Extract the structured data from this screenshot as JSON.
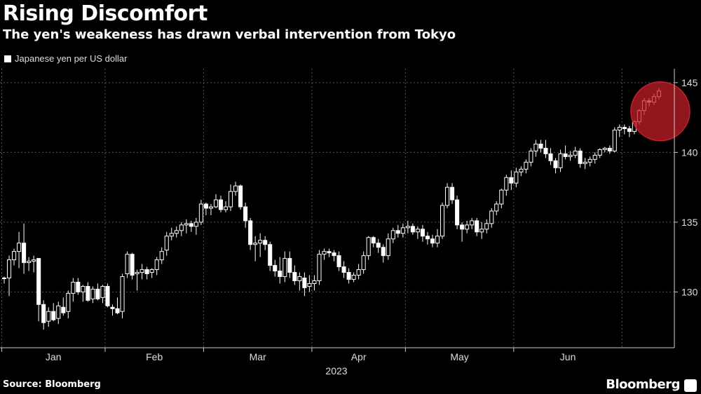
{
  "chart_data": {
    "type": "candlestick",
    "title": "Rising Discomfort",
    "subtitle": "The yen's weakeness has drawn verbal intervention from Tokyo",
    "series_name": "Japanese yen per US dollar",
    "ylim": [
      126,
      146
    ],
    "yticks": [
      130,
      135,
      140,
      145
    ],
    "x_ticks": [
      "Jan",
      "Feb",
      "Mar",
      "Apr",
      "May",
      "Jun"
    ],
    "x_year_label": "2023",
    "grid": true,
    "highlight": {
      "from_index": 128,
      "to_index": 138,
      "color": "#c8202a"
    },
    "candles": [
      [
        131.0,
        131.1,
        130.6,
        131.0
      ],
      [
        131.0,
        132.6,
        129.7,
        132.3
      ],
      [
        132.3,
        133.1,
        131.9,
        132.9
      ],
      [
        132.9,
        134.3,
        131.7,
        133.5
      ],
      [
        133.5,
        134.9,
        131.3,
        132.1
      ],
      [
        132.1,
        132.5,
        131.5,
        132.2
      ],
      [
        132.2,
        132.6,
        131.4,
        132.3
      ],
      [
        132.4,
        132.4,
        127.9,
        129.1
      ],
      [
        129.1,
        129.4,
        127.3,
        127.8
      ],
      [
        127.9,
        128.9,
        127.5,
        128.6
      ],
      [
        128.6,
        129.2,
        127.9,
        128.0
      ],
      [
        128.1,
        129.3,
        127.7,
        129.0
      ],
      [
        128.9,
        129.6,
        128.3,
        128.5
      ],
      [
        128.6,
        130.1,
        128.1,
        129.9
      ],
      [
        129.9,
        131.0,
        129.3,
        130.7
      ],
      [
        130.7,
        131.0,
        129.8,
        130.0
      ],
      [
        130.0,
        130.5,
        129.3,
        130.4
      ],
      [
        130.4,
        130.7,
        129.3,
        129.4
      ],
      [
        129.5,
        130.4,
        129.2,
        130.2
      ],
      [
        130.2,
        130.6,
        129.4,
        129.5
      ],
      [
        129.6,
        130.5,
        129.2,
        130.4
      ],
      [
        130.4,
        130.6,
        128.9,
        129.0
      ],
      [
        128.9,
        129.1,
        128.3,
        128.8
      ],
      [
        128.8,
        129.6,
        128.4,
        128.5
      ],
      [
        128.6,
        131.3,
        128.1,
        131.1
      ],
      [
        131.3,
        132.9,
        131.0,
        132.7
      ],
      [
        132.7,
        132.8,
        130.9,
        131.2
      ],
      [
        131.3,
        131.6,
        130.1,
        131.4
      ],
      [
        131.4,
        132.0,
        130.9,
        131.6
      ],
      [
        131.6,
        131.8,
        130.9,
        131.3
      ],
      [
        131.4,
        131.7,
        131.0,
        131.6
      ],
      [
        131.6,
        132.5,
        131.2,
        132.3
      ],
      [
        132.3,
        133.2,
        132.0,
        132.9
      ],
      [
        133.0,
        134.3,
        132.6,
        134.0
      ],
      [
        134.0,
        134.6,
        133.7,
        134.2
      ],
      [
        134.2,
        134.7,
        133.9,
        134.4
      ],
      [
        134.4,
        135.0,
        134.0,
        134.8
      ],
      [
        134.8,
        135.2,
        134.2,
        134.9
      ],
      [
        134.9,
        135.1,
        134.3,
        134.7
      ],
      [
        134.7,
        135.3,
        134.1,
        135.0
      ],
      [
        135.0,
        136.6,
        134.8,
        136.3
      ],
      [
        136.3,
        136.4,
        135.5,
        136.0
      ],
      [
        136.0,
        136.3,
        135.5,
        136.1
      ],
      [
        136.1,
        137.0,
        136.0,
        136.6
      ],
      [
        136.6,
        136.9,
        135.7,
        135.9
      ],
      [
        135.9,
        136.5,
        135.7,
        136.1
      ],
      [
        136.1,
        137.7,
        135.8,
        137.2
      ],
      [
        137.2,
        137.9,
        136.9,
        137.6
      ],
      [
        137.6,
        137.7,
        135.9,
        136.1
      ],
      [
        136.1,
        136.4,
        134.6,
        135.1
      ],
      [
        135.1,
        135.3,
        133.0,
        133.4
      ],
      [
        133.4,
        134.0,
        132.2,
        133.5
      ],
      [
        133.5,
        134.2,
        132.5,
        133.7
      ],
      [
        133.7,
        134.0,
        133.0,
        133.4
      ],
      [
        133.4,
        133.6,
        131.5,
        131.9
      ],
      [
        131.9,
        132.3,
        131.1,
        131.5
      ],
      [
        131.5,
        132.5,
        130.6,
        131.1
      ],
      [
        131.1,
        132.9,
        130.7,
        132.4
      ],
      [
        132.4,
        132.9,
        131.0,
        131.4
      ],
      [
        131.4,
        131.9,
        130.5,
        130.8
      ],
      [
        130.8,
        131.4,
        130.1,
        131.1
      ],
      [
        131.0,
        131.4,
        129.7,
        130.3
      ],
      [
        130.4,
        131.2,
        130.0,
        130.6
      ],
      [
        130.6,
        131.2,
        130.1,
        130.8
      ],
      [
        130.8,
        133.0,
        130.5,
        132.7
      ],
      [
        132.7,
        133.1,
        132.3,
        132.9
      ],
      [
        132.9,
        133.1,
        132.5,
        132.8
      ],
      [
        132.8,
        133.0,
        132.2,
        132.6
      ],
      [
        132.6,
        132.9,
        131.5,
        131.8
      ],
      [
        131.8,
        132.2,
        131.0,
        131.4
      ],
      [
        131.4,
        131.7,
        130.6,
        130.9
      ],
      [
        130.9,
        131.4,
        130.7,
        131.2
      ],
      [
        131.2,
        132.0,
        130.9,
        131.6
      ],
      [
        131.6,
        132.9,
        131.3,
        132.6
      ],
      [
        132.6,
        134.0,
        132.3,
        133.9
      ],
      [
        133.9,
        134.0,
        133.2,
        133.5
      ],
      [
        133.5,
        133.8,
        132.8,
        133.2
      ],
      [
        133.2,
        133.4,
        132.1,
        132.6
      ],
      [
        132.6,
        134.2,
        132.3,
        133.8
      ],
      [
        133.8,
        134.6,
        133.5,
        134.4
      ],
      [
        134.4,
        134.8,
        133.9,
        134.2
      ],
      [
        134.2,
        134.9,
        133.9,
        134.6
      ],
      [
        134.6,
        135.1,
        134.2,
        134.7
      ],
      [
        134.7,
        134.9,
        134.1,
        134.3
      ],
      [
        134.3,
        134.7,
        133.8,
        134.5
      ],
      [
        134.5,
        134.8,
        133.6,
        134.0
      ],
      [
        134.0,
        134.3,
        133.4,
        133.8
      ],
      [
        133.8,
        134.1,
        133.2,
        133.5
      ],
      [
        133.5,
        134.5,
        133.2,
        134.0
      ],
      [
        134.0,
        136.4,
        133.8,
        136.2
      ],
      [
        136.2,
        137.8,
        136.0,
        137.5
      ],
      [
        137.5,
        137.8,
        136.3,
        136.6
      ],
      [
        136.6,
        136.9,
        134.5,
        134.8
      ],
      [
        134.8,
        135.0,
        133.6,
        134.5
      ],
      [
        134.5,
        135.1,
        134.2,
        134.8
      ],
      [
        134.8,
        135.3,
        134.5,
        135.1
      ],
      [
        135.1,
        135.3,
        134.0,
        134.3
      ],
      [
        134.3,
        135.0,
        133.8,
        134.5
      ],
      [
        134.5,
        135.2,
        134.2,
        134.9
      ],
      [
        134.9,
        136.0,
        134.6,
        135.8
      ],
      [
        135.8,
        136.5,
        135.5,
        136.3
      ],
      [
        136.3,
        137.4,
        136.0,
        137.3
      ],
      [
        137.3,
        138.4,
        136.9,
        138.2
      ],
      [
        138.2,
        138.7,
        137.3,
        137.8
      ],
      [
        137.8,
        138.9,
        137.5,
        138.6
      ],
      [
        138.6,
        139.0,
        138.3,
        138.8
      ],
      [
        138.8,
        139.5,
        138.5,
        139.3
      ],
      [
        139.3,
        140.3,
        139.0,
        140.1
      ],
      [
        140.1,
        140.9,
        139.7,
        140.6
      ],
      [
        140.6,
        140.9,
        140.0,
        140.3
      ],
      [
        140.3,
        140.9,
        139.6,
        139.9
      ],
      [
        139.9,
        140.3,
        139.1,
        139.4
      ],
      [
        139.4,
        139.6,
        138.5,
        138.9
      ],
      [
        138.9,
        140.2,
        138.6,
        139.9
      ],
      [
        139.9,
        140.5,
        139.5,
        139.7
      ],
      [
        139.7,
        140.1,
        139.4,
        139.8
      ],
      [
        139.8,
        140.4,
        139.6,
        140.1
      ],
      [
        140.1,
        140.3,
        138.9,
        139.2
      ],
      [
        139.2,
        139.6,
        138.8,
        139.3
      ],
      [
        139.3,
        139.7,
        139.0,
        139.5
      ],
      [
        139.5,
        140.0,
        139.2,
        139.8
      ],
      [
        139.8,
        140.3,
        139.6,
        140.2
      ],
      [
        140.2,
        140.4,
        140.0,
        140.3
      ],
      [
        140.3,
        140.5,
        139.9,
        140.1
      ],
      [
        140.1,
        141.8,
        140.0,
        141.6
      ],
      [
        141.6,
        142.0,
        141.1,
        141.8
      ],
      [
        141.8,
        142.0,
        141.3,
        141.7
      ],
      [
        141.7,
        141.9,
        141.1,
        141.5
      ],
      [
        141.5,
        142.3,
        141.3,
        142.2
      ],
      [
        142.2,
        143.1,
        142.0,
        143.0
      ],
      [
        143.0,
        143.9,
        142.7,
        143.7
      ],
      [
        143.7,
        143.9,
        143.3,
        143.6
      ],
      [
        143.6,
        144.2,
        143.4,
        144.0
      ],
      [
        144.0,
        144.6,
        143.8,
        144.4
      ]
    ]
  },
  "source": "Source: Bloomberg",
  "logo_text": "Bloomberg"
}
